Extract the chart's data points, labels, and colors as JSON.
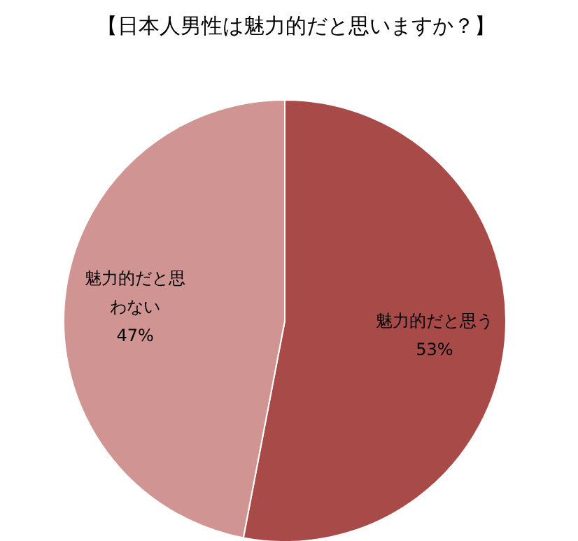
{
  "chart_data": {
    "type": "pie",
    "title": "【日本人男性は魅力的だと思いますか？】",
    "categories": [
      "魅力的だと思う",
      "魅力的だと思わない"
    ],
    "values": [
      53,
      47
    ],
    "colors": [
      "#a84a48",
      "#d09593"
    ],
    "value_labels": [
      "53%",
      "47%"
    ]
  }
}
